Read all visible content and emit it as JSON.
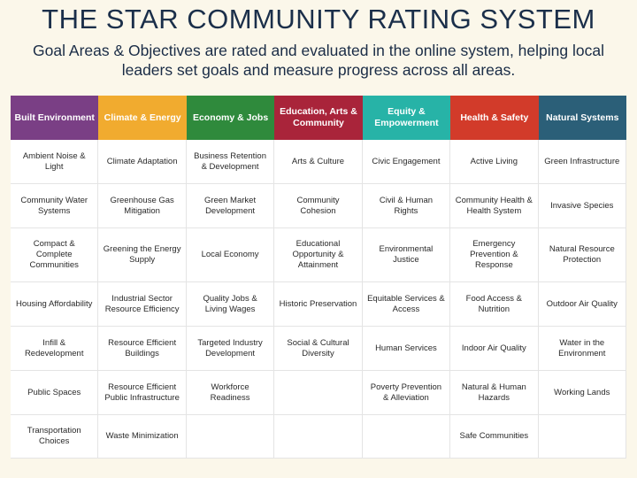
{
  "title": "THE STAR COMMUNITY RATING SYSTEM",
  "subtitle": "Goal Areas & Objectives are rated and evaluated in the online system, helping local leaders set goals and measure progress across all areas.",
  "goal_areas": [
    {
      "label": "Built Environment",
      "color": "#7a3f85",
      "text_color": "#ffffff"
    },
    {
      "label": "Climate & Energy",
      "color": "#f1ab2f",
      "text_color": "#ffffff"
    },
    {
      "label": "Economy & Jobs",
      "color": "#2f8a3c",
      "text_color": "#ffffff"
    },
    {
      "label": "Education, Arts & Community",
      "color": "#a9243a",
      "text_color": "#ffffff"
    },
    {
      "label": "Equity & Empowerment",
      "color": "#27b3a7",
      "text_color": "#ffffff"
    },
    {
      "label": "Health & Safety",
      "color": "#d23b2a",
      "text_color": "#ffffff"
    },
    {
      "label": "Natural Systems",
      "color": "#2b5f78",
      "text_color": "#ffffff"
    }
  ],
  "objectives": [
    [
      "Ambient Noise & Light",
      "Climate Adaptation",
      "Business Retention & Development",
      "Arts & Culture",
      "Civic Engagement",
      "Active Living",
      "Green Infrastructure"
    ],
    [
      "Community Water Systems",
      "Greenhouse Gas Mitigation",
      "Green Market Development",
      "Community Cohesion",
      "Civil & Human Rights",
      "Community Health & Health System",
      "Invasive Species"
    ],
    [
      "Compact & Complete Communities",
      "Greening the Energy Supply",
      "Local Economy",
      "Educational Opportunity & Attainment",
      "Environmental Justice",
      "Emergency Prevention & Response",
      "Natural Resource Protection"
    ],
    [
      "Housing Affordability",
      "Industrial Sector Resource Efficiency",
      "Quality Jobs & Living Wages",
      "Historic Preservation",
      "Equitable Services & Access",
      "Food Access & Nutrition",
      "Outdoor Air Quality"
    ],
    [
      "Infill & Redevelopment",
      "Resource Efficient Buildings",
      "Targeted Industry Development",
      "Social & Cultural Diversity",
      "Human Services",
      "Indoor Air Quality",
      "Water in the Environment"
    ],
    [
      "Public Spaces",
      "Resource Efficient Public Infrastructure",
      "Workforce Readiness",
      "",
      "Poverty Prevention & Alleviation",
      "Natural & Human Hazards",
      "Working Lands"
    ],
    [
      "Transportation Choices",
      "Waste Minimization",
      "",
      "",
      "",
      "Safe Communities",
      ""
    ]
  ]
}
